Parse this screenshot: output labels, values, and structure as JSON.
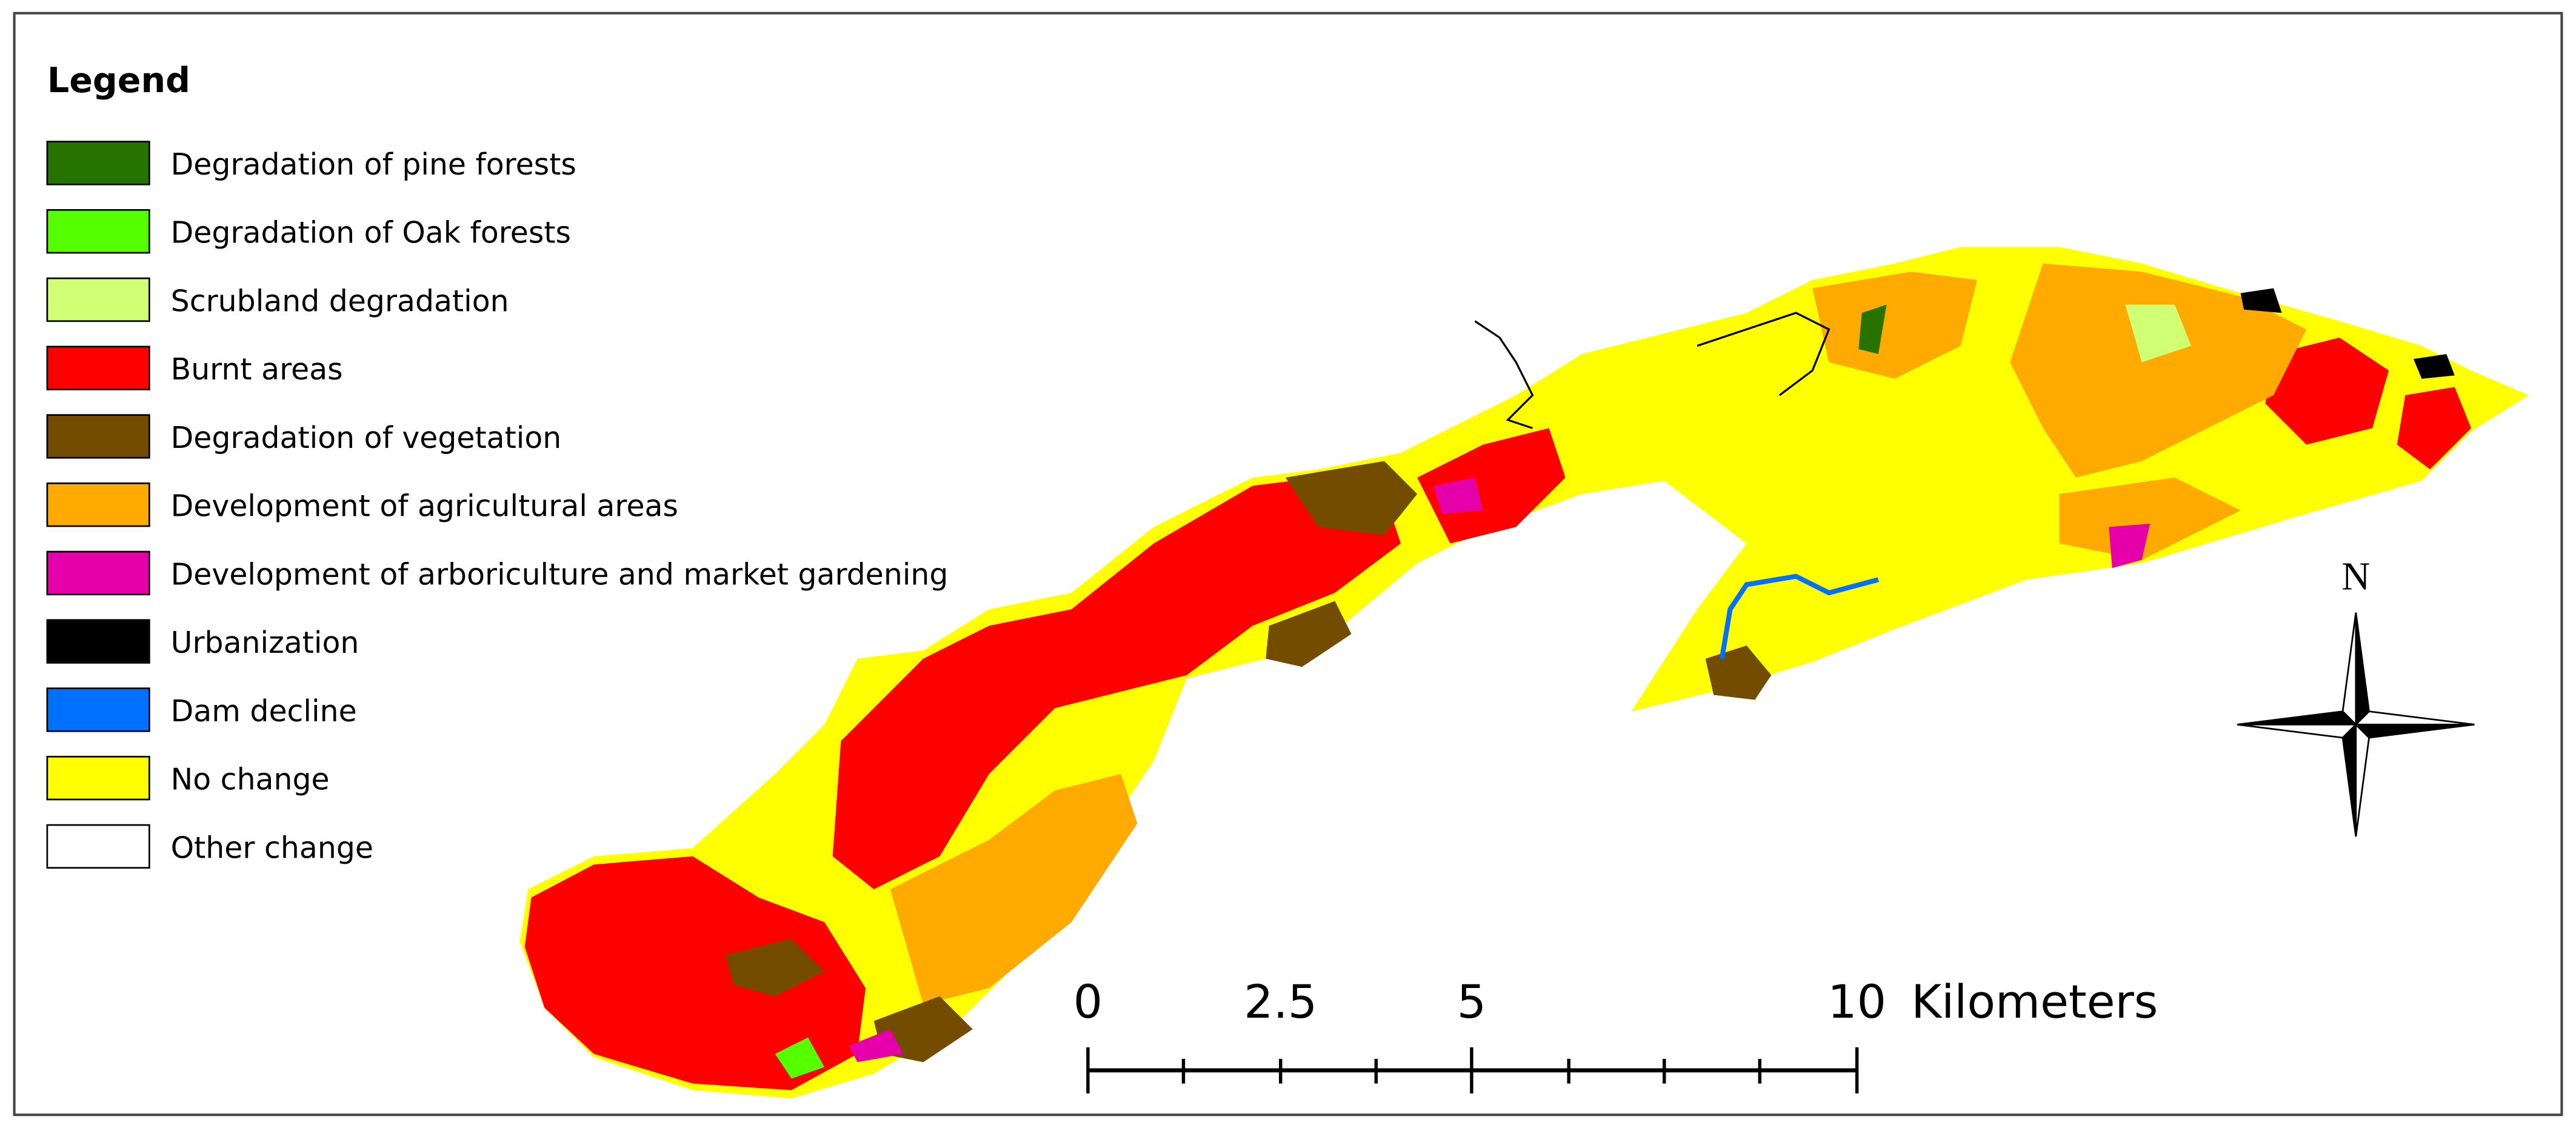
{
  "legend": {
    "title": "Legend",
    "items": [
      {
        "label": "Degradation of pine forests",
        "color": "#267300"
      },
      {
        "label": "Degradation of Oak forests",
        "color": "#55ff00"
      },
      {
        "label": "Scrubland degradation",
        "color": "#d1ff73"
      },
      {
        "label": "Burnt areas",
        "color": "#ff0000"
      },
      {
        "label": "Degradation of vegetation",
        "color": "#734c00"
      },
      {
        "label": "Development of agricultural areas",
        "color": "#ffaa00"
      },
      {
        "label": "Development of arboriculture and market gardening",
        "color": "#e600a9"
      },
      {
        "label": "Urbanization",
        "color": "#000000"
      },
      {
        "label": "Dam decline",
        "color": "#0070ff"
      },
      {
        "label": "No change",
        "color": "#ffff00"
      },
      {
        "label": "Other change",
        "color": "#ffffff"
      }
    ]
  },
  "scale_bar": {
    "labels": [
      "0",
      "2.5",
      "5",
      "10"
    ],
    "unit": "Kilometers"
  },
  "north_arrow": {
    "label": "N"
  }
}
